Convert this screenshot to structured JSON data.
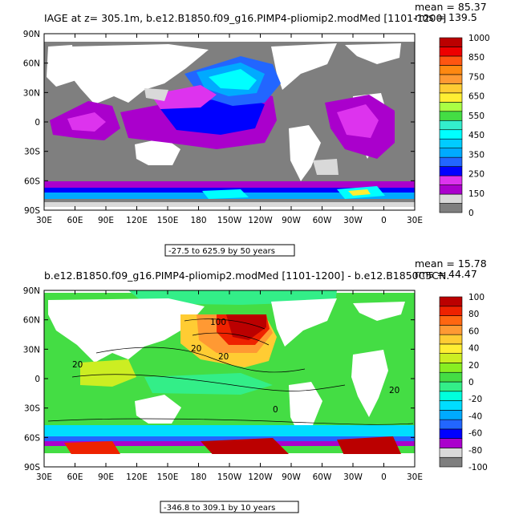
{
  "colors": {
    "land": "#7f7f7f",
    "lightgray": "#d9d9d9",
    "bg": "#ffffff"
  },
  "chart_data": [
    {
      "type": "heatmap",
      "title": "IAGE at z= 305.1m, b.e12.B1850.f09_g16.PIMP4-pliomip2.modMed [1101-1200]",
      "stats": {
        "mean_label": "mean = 85.37",
        "rms_label": "rms = 139.5"
      },
      "range_label": "-27.5 to 625.9 by 50 years",
      "x_ticks": [
        "30E",
        "60E",
        "90E",
        "120E",
        "150E",
        "180",
        "150W",
        "120W",
        "90W",
        "60W",
        "30W",
        "0",
        "30E"
      ],
      "y_ticks": [
        "90N",
        "60N",
        "30N",
        "0",
        "30S",
        "60S",
        "90S"
      ],
      "colorbar": {
        "labels": [
          "1000",
          "850",
          "750",
          "650",
          "550",
          "450",
          "350",
          "250",
          "150",
          "0"
        ],
        "colors": [
          "#7f7f7f",
          "#d9d9d9",
          "#aa00cc",
          "#dd33ee",
          "#0000ff",
          "#2266ff",
          "#00aaff",
          "#00ccff",
          "#00ffff",
          "#33eecc",
          "#44dd44",
          "#aaff44",
          "#ffee33",
          "#ffcc33",
          "#ff9933",
          "#ff8811",
          "#ff5511",
          "#ee0000",
          "#bb0000"
        ]
      }
    },
    {
      "type": "heatmap",
      "title": "b.e12.B1850.f09_g16.PIMP4-pliomip2.modMed [1101-1200] - b.e12.B1850C5CN.",
      "stats": {
        "mean_label": "mean = 15.78",
        "rms_label": "rms = 44.47"
      },
      "range_label": "-346.8 to 309.1 by 10 years",
      "contour_labels": [
        "100",
        "20",
        "20",
        "20",
        "0",
        "20"
      ],
      "x_ticks": [
        "30E",
        "60E",
        "90E",
        "120E",
        "150E",
        "180",
        "150W",
        "120W",
        "90W",
        "60W",
        "30W",
        "0",
        "30E"
      ],
      "y_ticks": [
        "90N",
        "60N",
        "30N",
        "0",
        "30S",
        "60S",
        "90S"
      ],
      "colorbar": {
        "labels": [
          "100",
          "80",
          "60",
          "40",
          "20",
          "0",
          "-20",
          "-40",
          "-60",
          "-80",
          "-100"
        ],
        "colors": [
          "#7f7f7f",
          "#d9d9d9",
          "#aa00cc",
          "#0000ff",
          "#2266ff",
          "#00aaff",
          "#00ddff",
          "#00ffdd",
          "#33ee88",
          "#44dd44",
          "#88ee22",
          "#ccee22",
          "#ffee33",
          "#ffcc33",
          "#ff9933",
          "#ff6611",
          "#ee2200",
          "#bb0000"
        ]
      }
    }
  ]
}
